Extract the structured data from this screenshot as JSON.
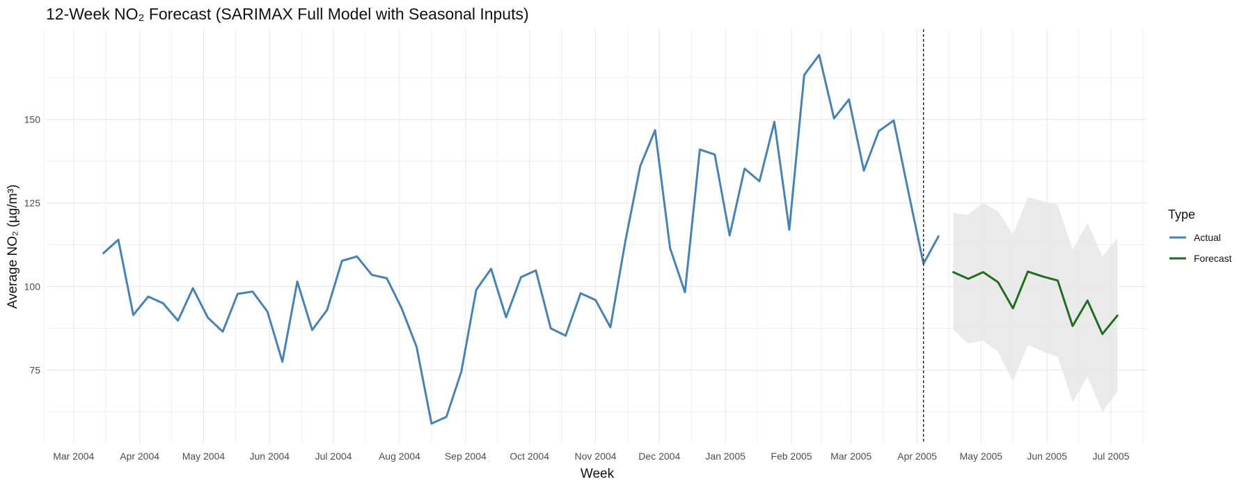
{
  "chart_data": {
    "type": "line",
    "title": "12-Week NO₂ Forecast (SARIMAX Full Model with Seasonal Inputs)",
    "xlabel": "Week",
    "ylabel": "Average NO₂ (µg/m³)",
    "x_ticks": [
      {
        "date": "2004-03-01",
        "label": "Mar 2004"
      },
      {
        "date": "2004-04-01",
        "label": "Apr 2004"
      },
      {
        "date": "2004-05-01",
        "label": "May 2004"
      },
      {
        "date": "2004-06-01",
        "label": "Jun 2004"
      },
      {
        "date": "2004-07-01",
        "label": "Jul 2004"
      },
      {
        "date": "2004-08-01",
        "label": "Aug 2004"
      },
      {
        "date": "2004-09-01",
        "label": "Sep 2004"
      },
      {
        "date": "2004-10-01",
        "label": "Oct 2004"
      },
      {
        "date": "2004-11-01",
        "label": "Nov 2004"
      },
      {
        "date": "2004-12-01",
        "label": "Dec 2004"
      },
      {
        "date": "2005-01-01",
        "label": "Jan 2005"
      },
      {
        "date": "2005-02-01",
        "label": "Feb 2005"
      },
      {
        "date": "2005-03-01",
        "label": "Mar 2005"
      },
      {
        "date": "2005-04-01",
        "label": "Apr 2005"
      },
      {
        "date": "2005-05-01",
        "label": "May 2005"
      },
      {
        "date": "2005-06-01",
        "label": "Jun 2005"
      },
      {
        "date": "2005-07-01",
        "label": "Jul 2005"
      }
    ],
    "y_ticks": [
      75,
      100,
      125,
      150
    ],
    "xlim": [
      "2004-02-17",
      "2005-07-18"
    ],
    "ylim": [
      53,
      177
    ],
    "grid": true,
    "legend": {
      "title": "Type",
      "position": "right"
    },
    "forecast_start": "2005-04-04",
    "series": [
      {
        "name": "Actual",
        "color": "#4682B4",
        "points": [
          [
            "2004-03-15",
            110.0
          ],
          [
            "2004-03-22",
            114.0
          ],
          [
            "2004-03-29",
            91.5
          ],
          [
            "2004-04-05",
            97.0
          ],
          [
            "2004-04-12",
            95.0
          ],
          [
            "2004-04-19",
            89.8
          ],
          [
            "2004-04-26",
            99.5
          ],
          [
            "2004-05-03",
            90.7
          ],
          [
            "2004-05-10",
            86.5
          ],
          [
            "2004-05-17",
            97.8
          ],
          [
            "2004-05-24",
            98.5
          ],
          [
            "2004-05-31",
            92.5
          ],
          [
            "2004-06-07",
            77.5
          ],
          [
            "2004-06-14",
            101.5
          ],
          [
            "2004-06-21",
            87.0
          ],
          [
            "2004-06-28",
            93.0
          ],
          [
            "2004-07-05",
            107.7
          ],
          [
            "2004-07-12",
            109.0
          ],
          [
            "2004-07-19",
            103.5
          ],
          [
            "2004-07-26",
            102.5
          ],
          [
            "2004-08-02",
            93.5
          ],
          [
            "2004-08-09",
            82.0
          ],
          [
            "2004-08-16",
            59.0
          ],
          [
            "2004-08-23",
            61.0
          ],
          [
            "2004-08-30",
            74.5
          ],
          [
            "2004-09-06",
            99.0
          ],
          [
            "2004-09-13",
            105.3
          ],
          [
            "2004-09-20",
            90.8
          ],
          [
            "2004-09-27",
            102.8
          ],
          [
            "2004-10-04",
            104.8
          ],
          [
            "2004-10-11",
            87.5
          ],
          [
            "2004-10-18",
            85.3
          ],
          [
            "2004-10-25",
            98.0
          ],
          [
            "2004-11-01",
            96.0
          ],
          [
            "2004-11-08",
            87.8
          ],
          [
            "2004-11-15",
            113.5
          ],
          [
            "2004-11-22",
            136.0
          ],
          [
            "2004-11-29",
            146.8
          ],
          [
            "2004-12-06",
            111.5
          ],
          [
            "2004-12-13",
            98.3
          ],
          [
            "2004-12-20",
            141.0
          ],
          [
            "2004-12-27",
            139.5
          ],
          [
            "2005-01-03",
            115.3
          ],
          [
            "2005-01-10",
            135.3
          ],
          [
            "2005-01-17",
            131.5
          ],
          [
            "2005-01-24",
            149.3
          ],
          [
            "2005-01-31",
            117.0
          ],
          [
            "2005-02-07",
            163.3
          ],
          [
            "2005-02-14",
            169.3
          ],
          [
            "2005-02-21",
            150.3
          ],
          [
            "2005-02-28",
            156.0
          ],
          [
            "2005-03-07",
            134.7
          ],
          [
            "2005-03-14",
            146.5
          ],
          [
            "2005-03-21",
            149.7
          ],
          [
            "2005-03-28",
            128.0
          ],
          [
            "2005-04-04",
            106.8
          ],
          [
            "2005-04-11",
            115.0
          ]
        ]
      },
      {
        "name": "Forecast",
        "color": "#1F6E1F",
        "points": [
          [
            "2005-04-18",
            104.3
          ],
          [
            "2005-04-25",
            102.3
          ],
          [
            "2005-05-02",
            104.3
          ],
          [
            "2005-05-09",
            101.3
          ],
          [
            "2005-05-16",
            93.5
          ],
          [
            "2005-05-23",
            104.5
          ],
          [
            "2005-05-30",
            103.0
          ],
          [
            "2005-06-06",
            101.8
          ],
          [
            "2005-06-13",
            88.2
          ],
          [
            "2005-06-20",
            95.8
          ],
          [
            "2005-06-27",
            85.8
          ],
          [
            "2005-07-04",
            91.3
          ]
        ],
        "lower": [
          87.0,
          83.0,
          83.8,
          80.5,
          71.5,
          82.5,
          80.5,
          79.0,
          65.5,
          73.0,
          62.5,
          68.5
        ],
        "upper": [
          122.0,
          121.5,
          125.0,
          122.5,
          115.5,
          126.8,
          125.5,
          124.5,
          111.0,
          119.0,
          109.0,
          114.5
        ]
      }
    ]
  }
}
